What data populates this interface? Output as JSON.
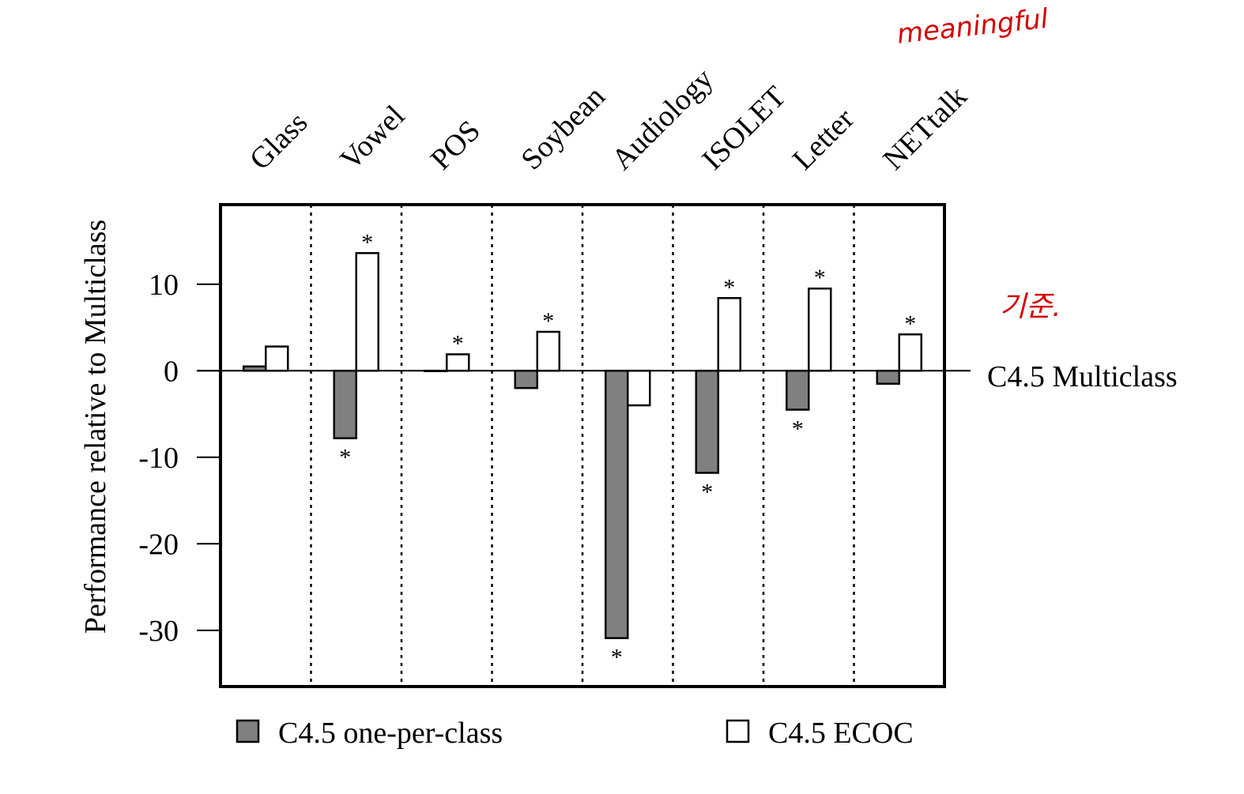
{
  "chart_data": {
    "type": "bar",
    "title": "",
    "xlabel": "",
    "ylabel": "Performance relative to Multiclass",
    "ylim": [
      -36.5,
      19.2
    ],
    "yticks": [
      10,
      0,
      -10,
      -20,
      -30
    ],
    "ytick_labels": [
      "10",
      "0",
      "-10",
      "-20",
      "-30"
    ],
    "grid": false,
    "categories": [
      "Glass",
      "Vowel",
      "POS",
      "Soybean",
      "Audiology",
      "ISOLET",
      "Letter",
      "NETtalk"
    ],
    "series": [
      {
        "name": "C4.5 one-per-class",
        "color": "#808080",
        "values": [
          0.5,
          -7.8,
          0.0,
          -2.0,
          -30.9,
          -11.8,
          -4.5,
          -1.5
        ],
        "significant": [
          false,
          true,
          false,
          false,
          true,
          true,
          true,
          false
        ]
      },
      {
        "name": "C4.5 ECOC",
        "color": "#ffffff",
        "values": [
          2.8,
          13.6,
          1.9,
          4.5,
          -4.0,
          8.4,
          9.5,
          4.2
        ],
        "significant": [
          false,
          true,
          true,
          true,
          false,
          true,
          true,
          true
        ]
      }
    ],
    "reference_line": {
      "value": 0,
      "label": "C4.5 Multiclass"
    },
    "significance_marker": "*",
    "legend_placement": "bottom"
  },
  "annotations": {
    "handwritten_top": "meaningful",
    "handwritten_side": "기준.",
    "color": "#d40000"
  }
}
